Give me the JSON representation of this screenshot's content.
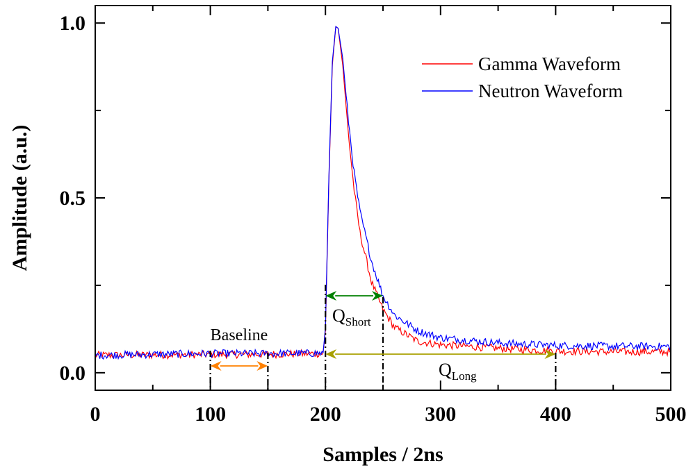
{
  "chart_data": {
    "type": "line",
    "xlabel": "Samples / 2ns",
    "ylabel": "Amplitude (a.u.)",
    "xlim": [
      0,
      500
    ],
    "ylim": [
      -0.05,
      1.05
    ],
    "x_ticks": [
      0,
      100,
      200,
      300,
      400,
      500
    ],
    "x_tick_labels": [
      "0",
      "100",
      "200",
      "300",
      "400",
      "500"
    ],
    "y_ticks": [
      0.0,
      0.5,
      1.0
    ],
    "y_tick_labels": [
      "0.0",
      "0.5",
      "1.0"
    ],
    "grid": false,
    "legend": {
      "placement": "top-right"
    },
    "series": [
      {
        "name": "Gamma Waveform",
        "color": "#ff0000",
        "x": [
          0,
          100,
          150,
          198,
          200,
          203,
          206,
          209,
          211,
          215,
          220,
          225,
          230,
          240,
          250,
          260,
          280,
          300,
          350,
          400,
          450,
          500
        ],
        "y": [
          0.05,
          0.052,
          0.053,
          0.055,
          0.12,
          0.55,
          0.88,
          0.99,
          0.985,
          0.88,
          0.68,
          0.52,
          0.4,
          0.26,
          0.18,
          0.13,
          0.09,
          0.08,
          0.07,
          0.062,
          0.06,
          0.06
        ]
      },
      {
        "name": "Neutron Waveform",
        "color": "#0000ff",
        "x": [
          0,
          100,
          150,
          198,
          200,
          203,
          206,
          209,
          211,
          215,
          220,
          225,
          230,
          240,
          250,
          260,
          280,
          300,
          350,
          400,
          450,
          500
        ],
        "y": [
          0.05,
          0.055,
          0.055,
          0.056,
          0.13,
          0.56,
          0.89,
          0.99,
          0.985,
          0.9,
          0.72,
          0.57,
          0.46,
          0.32,
          0.22,
          0.165,
          0.12,
          0.1,
          0.085,
          0.078,
          0.076,
          0.075
        ]
      }
    ],
    "annotations": {
      "baseline": {
        "label": "Baseline",
        "x_start": 100,
        "x_end": 150,
        "color": "#ff8000"
      },
      "q_short": {
        "label": "Q",
        "sub": "Short",
        "x_start": 200,
        "x_end": 250,
        "color": "#008000"
      },
      "q_long": {
        "label": "Q",
        "sub": "Long",
        "x_start": 200,
        "x_end": 400,
        "color": "#a8a000"
      }
    }
  }
}
